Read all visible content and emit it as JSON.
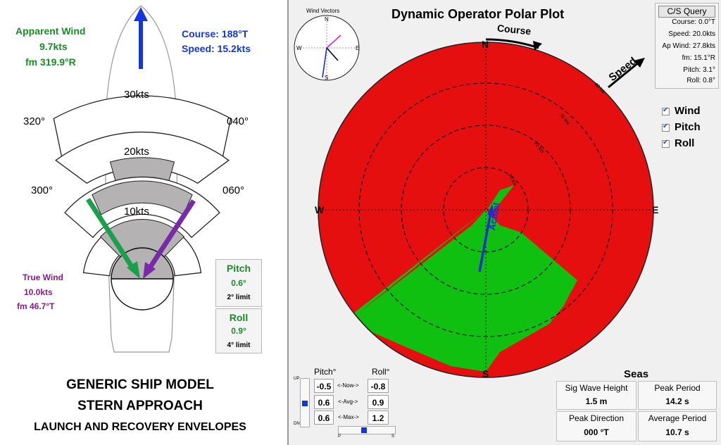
{
  "left": {
    "apparent_wind": {
      "title": "Apparent Wind",
      "speed": "9.7kts",
      "from": "fm 319.9°R"
    },
    "course": {
      "course": "Course: 188°T",
      "speed": "Speed: 15.2kts"
    },
    "true_wind": {
      "title": "True Wind",
      "speed": "10.0kts",
      "from": "fm 46.7°T"
    },
    "speed_rings": [
      "30kts",
      "20kts",
      "10kts"
    ],
    "bearings": {
      "b320": "320°",
      "b040": "040°",
      "b300": "300°",
      "b060": "060°"
    },
    "pitch": {
      "title": "Pitch",
      "value": "0.6°",
      "limit": "2° limit"
    },
    "roll": {
      "title": "Roll",
      "value": "0.9°",
      "limit": "4° limit"
    },
    "caption": [
      "GENERIC SHIP MODEL",
      "STERN APPROACH",
      "LAUNCH AND RECOVERY ENVELOPES"
    ],
    "colors": {
      "green": "#1aa04a",
      "purple": "#7a2aa8",
      "blue": "#1436e0",
      "gray": "#b4b2b2"
    }
  },
  "right": {
    "title": "Dynamic Operator Polar Plot",
    "wind_vectors_label": "Wind Vectors",
    "compass": {
      "n": "N",
      "e": "E",
      "s": "S",
      "w": "W"
    },
    "rings": [
      "10 kts",
      "20 kts",
      "30 kts",
      "40 kts"
    ],
    "course_label": "Course",
    "speed_label": "Speed",
    "actual_label": "Actual",
    "cs_query": {
      "button": "C/S Query",
      "course": "Course: 0.0°T",
      "speed": "Speed: 20.0kts",
      "ap_wind": "Ap Wind: 27.8kts",
      "fm": "fm: 15.1°R",
      "pitch": "Pitch: 3.1°",
      "roll": "Roll: 0.8°"
    },
    "checkboxes": [
      {
        "label": "Wind",
        "checked": true
      },
      {
        "label": "Pitch",
        "checked": true
      },
      {
        "label": "Roll",
        "checked": true
      }
    ],
    "motion": {
      "pitch_header": "Pitch°",
      "roll_header": "Roll°",
      "up": "UP",
      "dn": "DN",
      "p": "P",
      "s": "S",
      "rows": [
        {
          "pitch": "-0.5",
          "label": "<-Now->",
          "roll": "-0.8"
        },
        {
          "pitch": "0.6",
          "label": "<-Avg->",
          "roll": "0.9"
        },
        {
          "pitch": "0.6",
          "label": "<-Max->",
          "roll": "1.2"
        }
      ]
    },
    "seas": {
      "title": "Seas",
      "sig_wave_height_label": "Sig Wave Height",
      "sig_wave_height": "1.5 m",
      "peak_period_label": "Peak Period",
      "peak_period": "14.2 s",
      "peak_direction_label": "Peak Direction",
      "peak_direction": "000 °T",
      "average_period_label": "Average Period",
      "average_period": "10.7 s"
    },
    "colors": {
      "red": "#e60f0f",
      "green": "#10c010",
      "arrow": "#1a2fd0",
      "magenta": "#e020e0"
    }
  }
}
